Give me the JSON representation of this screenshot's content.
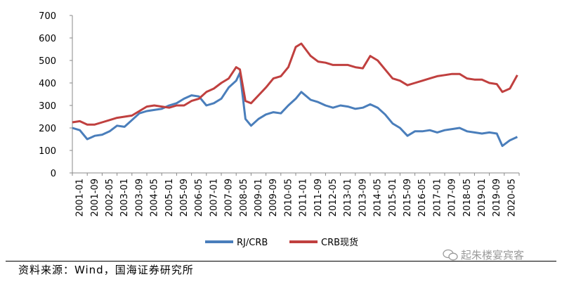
{
  "chart_data": {
    "type": "line",
    "yticks": [
      "0",
      "100",
      "200",
      "300",
      "400",
      "500",
      "600",
      "700"
    ],
    "ylim": [
      0,
      700
    ],
    "xticks": [
      "2001-01",
      "2001-09",
      "2002-05",
      "2003-01",
      "2003-09",
      "2004-05",
      "2005-01",
      "2005-09",
      "2006-05",
      "2007-01",
      "2007-09",
      "2008-05",
      "2009-01",
      "2009-09",
      "2010-05",
      "2011-01",
      "2011-09",
      "2012-05",
      "2013-01",
      "2013-09",
      "2014-05",
      "2015-01",
      "2015-09",
      "2016-05",
      "2017-01",
      "2017-09",
      "2018-05",
      "2019-01",
      "2019-09",
      "2020-05"
    ],
    "series": [
      {
        "name": "RJ/CRB",
        "color": "#4a7ebb",
        "x": [
          "2001-01",
          "2001-05",
          "2001-09",
          "2002-01",
          "2002-05",
          "2002-09",
          "2003-01",
          "2003-05",
          "2003-09",
          "2004-01",
          "2004-05",
          "2004-09",
          "2005-01",
          "2005-05",
          "2005-09",
          "2006-01",
          "2006-05",
          "2006-09",
          "2007-01",
          "2007-05",
          "2007-09",
          "2008-01",
          "2008-05",
          "2008-07",
          "2008-10",
          "2009-01",
          "2009-05",
          "2009-09",
          "2010-01",
          "2010-05",
          "2010-09",
          "2011-01",
          "2011-04",
          "2011-09",
          "2012-01",
          "2012-05",
          "2012-09",
          "2013-01",
          "2013-05",
          "2013-09",
          "2014-01",
          "2014-05",
          "2014-09",
          "2015-01",
          "2015-05",
          "2015-09",
          "2016-01",
          "2016-05",
          "2016-09",
          "2017-01",
          "2017-05",
          "2017-09",
          "2018-01",
          "2018-05",
          "2018-09",
          "2019-01",
          "2019-05",
          "2019-09",
          "2020-01",
          "2020-04",
          "2020-08",
          "2020-12"
        ],
        "values": [
          200,
          190,
          150,
          165,
          170,
          185,
          210,
          205,
          235,
          265,
          275,
          280,
          285,
          300,
          310,
          330,
          345,
          340,
          300,
          310,
          330,
          380,
          410,
          445,
          240,
          210,
          240,
          260,
          270,
          265,
          300,
          330,
          360,
          325,
          315,
          300,
          290,
          300,
          295,
          285,
          290,
          305,
          290,
          260,
          220,
          200,
          165,
          185,
          185,
          190,
          180,
          190,
          195,
          200,
          185,
          180,
          175,
          180,
          175,
          120,
          145,
          160
        ]
      },
      {
        "name": "CRB现货",
        "color": "#c0403f",
        "x": [
          "2001-01",
          "2001-05",
          "2001-09",
          "2002-01",
          "2002-05",
          "2002-09",
          "2003-01",
          "2003-05",
          "2003-09",
          "2004-01",
          "2004-05",
          "2004-09",
          "2005-01",
          "2005-05",
          "2005-09",
          "2006-01",
          "2006-05",
          "2006-09",
          "2007-01",
          "2007-05",
          "2007-09",
          "2008-01",
          "2008-05",
          "2008-07",
          "2008-10",
          "2009-01",
          "2009-05",
          "2009-09",
          "2010-01",
          "2010-05",
          "2010-09",
          "2011-01",
          "2011-04",
          "2011-09",
          "2012-01",
          "2012-05",
          "2012-09",
          "2013-01",
          "2013-05",
          "2013-09",
          "2014-01",
          "2014-05",
          "2014-09",
          "2015-01",
          "2015-05",
          "2015-09",
          "2016-01",
          "2016-05",
          "2016-09",
          "2017-01",
          "2017-05",
          "2017-09",
          "2018-01",
          "2018-05",
          "2018-09",
          "2019-01",
          "2019-05",
          "2019-09",
          "2020-01",
          "2020-04",
          "2020-08",
          "2020-12"
        ],
        "values": [
          225,
          230,
          215,
          215,
          225,
          235,
          245,
          250,
          255,
          275,
          295,
          300,
          295,
          290,
          300,
          300,
          320,
          330,
          360,
          375,
          400,
          420,
          470,
          460,
          320,
          310,
          345,
          380,
          420,
          430,
          470,
          560,
          575,
          520,
          495,
          490,
          480,
          480,
          480,
          470,
          465,
          520,
          500,
          460,
          420,
          410,
          390,
          400,
          410,
          420,
          430,
          435,
          440,
          440,
          420,
          415,
          415,
          400,
          395,
          360,
          375,
          435
        ]
      }
    ]
  },
  "legend": {
    "items": [
      "RJ/CRB",
      "CRB现货"
    ]
  },
  "source": "资料来源：Wind，国海证券研究所",
  "watermark": "起朱楼宴宾客"
}
